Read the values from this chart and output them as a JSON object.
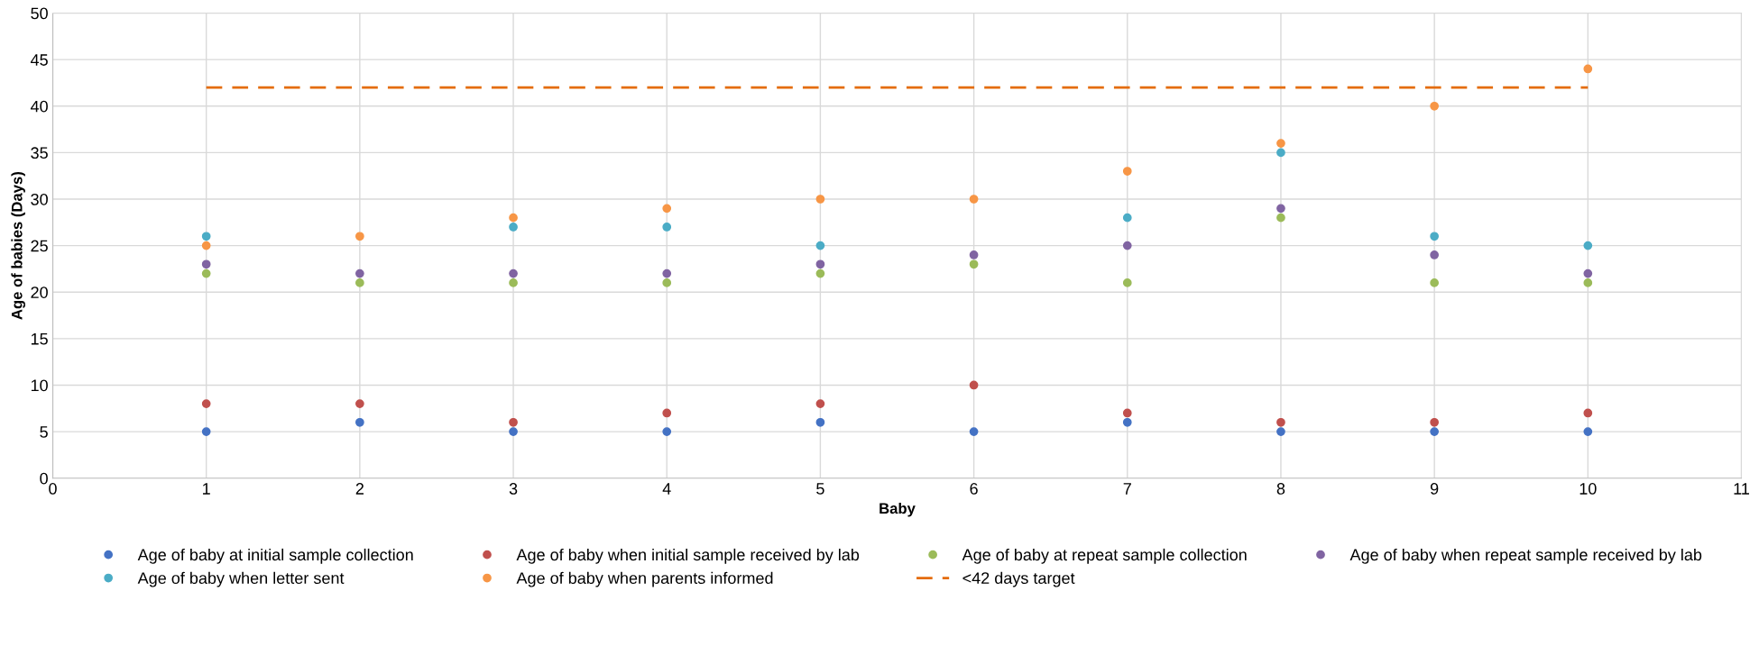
{
  "chart_data": {
    "type": "scatter",
    "xlabel": "Baby",
    "ylabel": "Age of babies (Days)",
    "x": [
      1,
      2,
      3,
      4,
      5,
      6,
      7,
      8,
      9,
      10
    ],
    "xlim": [
      0,
      11
    ],
    "xticks": [
      0,
      1,
      2,
      3,
      4,
      5,
      6,
      7,
      8,
      9,
      10,
      11
    ],
    "ylim": [
      0,
      50
    ],
    "yticks": [
      0,
      5,
      10,
      15,
      20,
      25,
      30,
      35,
      40,
      45,
      50
    ],
    "grid": true,
    "legend": "bottom",
    "marker": "circle",
    "series": [
      {
        "name": "Age of baby at initial sample collection",
        "color": "#4472c4",
        "values": [
          5,
          6,
          5,
          5,
          6,
          5,
          6,
          5,
          5,
          5
        ]
      },
      {
        "name": "Age of baby when initial sample received by lab",
        "color": "#c0504d",
        "values": [
          8,
          8,
          6,
          7,
          8,
          10,
          7,
          6,
          6,
          7
        ]
      },
      {
        "name": "Age of baby at repeat sample collection",
        "color": "#9bbb59",
        "values": [
          22,
          21,
          21,
          21,
          22,
          23,
          21,
          28,
          21,
          21
        ]
      },
      {
        "name": "Age of baby when repeat sample received by lab",
        "color": "#8064a2",
        "values": [
          23,
          22,
          22,
          22,
          23,
          24,
          25,
          29,
          24,
          22
        ]
      },
      {
        "name": "Age of baby when letter sent",
        "color": "#4bacc6",
        "values": [
          26,
          null,
          27,
          27,
          25,
          null,
          28,
          35,
          26,
          25
        ]
      },
      {
        "name": "Age of baby when parents informed",
        "color": "#f79646",
        "values": [
          25,
          26,
          28,
          29,
          30,
          30,
          33,
          36,
          40,
          44
        ]
      },
      {
        "name": "<42 days target",
        "color": "#e46c0a",
        "type": "line",
        "marker": "none",
        "line_style": "dashed",
        "x": [
          1,
          10
        ],
        "values": [
          42,
          42
        ]
      }
    ]
  }
}
